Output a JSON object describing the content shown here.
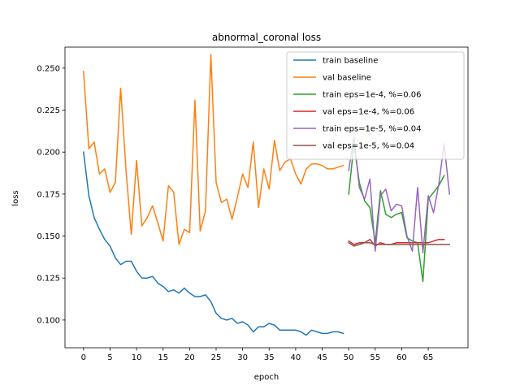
{
  "chart_data": {
    "type": "line",
    "title": "abnormal_coronal loss",
    "xlabel": "epoch",
    "ylabel": "loss",
    "xlim": [
      -3.5,
      72.5
    ],
    "ylim": [
      0.0835,
      0.2625
    ],
    "xticks": [
      0,
      5,
      10,
      15,
      20,
      25,
      30,
      35,
      40,
      45,
      50,
      55,
      60,
      65
    ],
    "yticks": [
      0.1,
      0.125,
      0.15,
      0.175,
      0.2,
      0.225,
      0.25
    ],
    "ytick_labels": [
      "0.100",
      "0.125",
      "0.150",
      "0.175",
      "0.200",
      "0.225",
      "0.250"
    ],
    "grid": false,
    "legend_position": "upper right",
    "series": [
      {
        "name": "train baseline",
        "color": "#1f77b4",
        "x": [
          0,
          1,
          2,
          3,
          4,
          5,
          6,
          7,
          8,
          9,
          10,
          11,
          12,
          13,
          14,
          15,
          16,
          17,
          18,
          19,
          20,
          21,
          22,
          23,
          24,
          25,
          26,
          27,
          28,
          29,
          30,
          31,
          32,
          33,
          34,
          35,
          36,
          37,
          38,
          39,
          40,
          41,
          42,
          43,
          44,
          45,
          46,
          47,
          48,
          49
        ],
        "y": [
          0.2,
          0.174,
          0.161,
          0.154,
          0.148,
          0.144,
          0.137,
          0.133,
          0.135,
          0.135,
          0.129,
          0.125,
          0.125,
          0.126,
          0.122,
          0.12,
          0.117,
          0.118,
          0.116,
          0.119,
          0.116,
          0.114,
          0.114,
          0.115,
          0.111,
          0.104,
          0.101,
          0.1,
          0.101,
          0.098,
          0.099,
          0.097,
          0.093,
          0.096,
          0.096,
          0.098,
          0.097,
          0.094,
          0.094,
          0.094,
          0.094,
          0.093,
          0.091,
          0.094,
          0.093,
          0.092,
          0.092,
          0.093,
          0.093,
          0.092
        ]
      },
      {
        "name": "val baseline",
        "color": "#ff7f0e",
        "x": [
          0,
          1,
          2,
          3,
          4,
          5,
          6,
          7,
          8,
          9,
          10,
          11,
          12,
          13,
          14,
          15,
          16,
          17,
          18,
          19,
          20,
          21,
          22,
          23,
          24,
          25,
          26,
          27,
          28,
          29,
          30,
          31,
          32,
          33,
          34,
          35,
          36,
          37,
          38,
          39,
          40,
          41,
          42,
          43,
          44,
          45,
          46,
          47,
          48,
          49
        ],
        "y": [
          0.248,
          0.202,
          0.206,
          0.187,
          0.19,
          0.176,
          0.182,
          0.238,
          0.189,
          0.151,
          0.195,
          0.156,
          0.161,
          0.168,
          0.158,
          0.147,
          0.18,
          0.176,
          0.145,
          0.154,
          0.152,
          0.231,
          0.153,
          0.165,
          0.258,
          0.182,
          0.17,
          0.172,
          0.16,
          0.173,
          0.187,
          0.179,
          0.206,
          0.167,
          0.19,
          0.178,
          0.207,
          0.189,
          0.194,
          0.196,
          0.187,
          0.181,
          0.19,
          0.193,
          0.193,
          0.192,
          0.19,
          0.19,
          0.191,
          0.192
        ]
      },
      {
        "name": "train eps=1e-4, %=0.06",
        "color": "#2ca02c",
        "x": [
          50,
          51,
          52,
          53,
          54,
          55,
          56,
          57,
          58,
          59,
          60,
          61,
          62,
          63,
          64,
          65,
          66,
          67,
          68
        ],
        "y": [
          0.175,
          0.205,
          0.182,
          0.171,
          0.167,
          0.146,
          0.177,
          0.163,
          0.161,
          0.163,
          0.164,
          0.149,
          0.147,
          0.146,
          0.123,
          0.172,
          0.176,
          0.18,
          0.186
        ]
      },
      {
        "name": "val eps=1e-4, %=0.06",
        "color": "#d62728",
        "x": [
          50,
          51,
          52,
          53,
          54,
          55,
          56,
          57,
          58,
          59,
          60,
          61,
          62,
          63,
          64,
          65,
          66,
          67,
          68
        ],
        "y": [
          0.147,
          0.145,
          0.146,
          0.146,
          0.148,
          0.144,
          0.146,
          0.145,
          0.145,
          0.146,
          0.146,
          0.146,
          0.146,
          0.146,
          0.146,
          0.146,
          0.147,
          0.148,
          0.148
        ]
      },
      {
        "name": "train eps=1e-5, %=0.04",
        "color": "#9467bd",
        "x": [
          50,
          51,
          52,
          53,
          54,
          55,
          56,
          57,
          58,
          59,
          60,
          61,
          62,
          63,
          64,
          65,
          66,
          67,
          68,
          69
        ],
        "y": [
          0.189,
          0.209,
          0.179,
          0.172,
          0.184,
          0.141,
          0.174,
          0.178,
          0.165,
          0.169,
          0.168,
          0.15,
          0.141,
          0.179,
          0.14,
          0.174,
          0.164,
          0.181,
          0.205,
          0.175
        ]
      },
      {
        "name": "val eps=1e-5, %=0.04",
        "color": "#8c564b",
        "x": [
          50,
          51,
          52,
          53,
          54,
          55,
          56,
          57,
          58,
          59,
          60,
          61,
          62,
          63,
          64,
          65,
          66,
          67,
          68,
          69
        ],
        "y": [
          0.146,
          0.144,
          0.145,
          0.146,
          0.146,
          0.145,
          0.145,
          0.145,
          0.145,
          0.145,
          0.145,
          0.145,
          0.145,
          0.145,
          0.145,
          0.145,
          0.145,
          0.145,
          0.145,
          0.145
        ]
      }
    ]
  }
}
